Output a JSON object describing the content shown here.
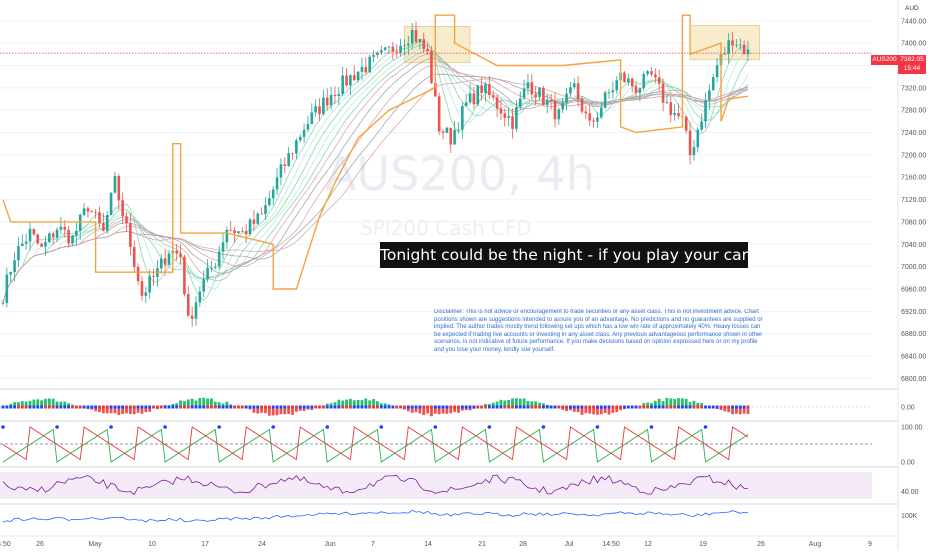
{
  "watermark": {
    "title": "AUS200, 4h",
    "subtitle": "SPI200 Cash CFD"
  },
  "banner_text": "Tonight could be the night - if you play your cards right",
  "disclaimer_text": "Disclaimer: This is not advice or encouragement to trade securities or any asset class. This is not investment advice. Chart positions shown are suggestions intended to assure you of an advantage. No predictions and no guarantees are supplied or implied. The author trades mostly trend following set ups which has a low win rate of approximately 40%. Heavy losses can be expected if trading live accounts or investing in any asset class. Any previous advantageous performance shown in other scenarios, is not indicative of future performance.  If you make decisions based on opinion expressed here or on my profile and you lose your money, kindly sue yourself.",
  "currency_label": "AUD",
  "price_badge": {
    "symbol": "AUS200",
    "price": "7382.05",
    "countdown": "15:44"
  },
  "colors": {
    "up": "#26a69a",
    "down": "#ef5350",
    "stop": "#f5a340",
    "highlight": "#f3e3b0",
    "rsi": "#7b1fa2",
    "volume_line": "#2962ff"
  },
  "chart_data": {
    "type": "candlestick",
    "symbol": "AUS200",
    "timeframe": "4h",
    "ylim": [
      6790,
      7470
    ],
    "y_ticks": [
      6800,
      6840,
      6880,
      6920,
      6960,
      7000,
      7040,
      7080,
      7120,
      7160,
      7200,
      7240,
      7280,
      7320,
      7360,
      7400,
      7440
    ],
    "x_ticks": [
      "14:50",
      "26",
      "May",
      "10",
      "17",
      "24",
      "Jun",
      "7",
      "14",
      "21",
      "28",
      "Jul",
      "14:50",
      "12",
      "19",
      "26",
      "Aug",
      "9"
    ],
    "last_price": 7382.05,
    "close_path": [
      {
        "i": 0,
        "v": 6950
      },
      {
        "i": 3,
        "v": 7020
      },
      {
        "i": 7,
        "v": 7060
      },
      {
        "i": 10,
        "v": 7030
      },
      {
        "i": 14,
        "v": 7070
      },
      {
        "i": 18,
        "v": 7050
      },
      {
        "i": 22,
        "v": 7110
      },
      {
        "i": 26,
        "v": 7060
      },
      {
        "i": 29,
        "v": 7150
      },
      {
        "i": 33,
        "v": 7040
      },
      {
        "i": 36,
        "v": 6950
      },
      {
        "i": 40,
        "v": 6990
      },
      {
        "i": 43,
        "v": 7030
      },
      {
        "i": 46,
        "v": 7020
      },
      {
        "i": 48,
        "v": 6900
      },
      {
        "i": 51,
        "v": 6960
      },
      {
        "i": 55,
        "v": 7010
      },
      {
        "i": 58,
        "v": 7070
      },
      {
        "i": 62,
        "v": 7060
      },
      {
        "i": 67,
        "v": 7090
      },
      {
        "i": 72,
        "v": 7170
      },
      {
        "i": 78,
        "v": 7250
      },
      {
        "i": 85,
        "v": 7310
      },
      {
        "i": 92,
        "v": 7350
      },
      {
        "i": 99,
        "v": 7380
      },
      {
        "i": 106,
        "v": 7420
      },
      {
        "i": 110,
        "v": 7380
      },
      {
        "i": 113,
        "v": 7250
      },
      {
        "i": 116,
        "v": 7230
      },
      {
        "i": 120,
        "v": 7290
      },
      {
        "i": 124,
        "v": 7320
      },
      {
        "i": 128,
        "v": 7290
      },
      {
        "i": 132,
        "v": 7260
      },
      {
        "i": 136,
        "v": 7330
      },
      {
        "i": 140,
        "v": 7300
      },
      {
        "i": 144,
        "v": 7270
      },
      {
        "i": 148,
        "v": 7320
      },
      {
        "i": 152,
        "v": 7250
      },
      {
        "i": 156,
        "v": 7300
      },
      {
        "i": 160,
        "v": 7340
      },
      {
        "i": 164,
        "v": 7320
      },
      {
        "i": 168,
        "v": 7340
      },
      {
        "i": 172,
        "v": 7290
      },
      {
        "i": 176,
        "v": 7260
      },
      {
        "i": 178,
        "v": 7200
      },
      {
        "i": 181,
        "v": 7270
      },
      {
        "i": 185,
        "v": 7360
      },
      {
        "i": 189,
        "v": 7410
      },
      {
        "i": 193,
        "v": 7382
      }
    ],
    "stop_line": [
      {
        "i": 0,
        "v": 7120
      },
      {
        "i": 2,
        "v": 7080
      },
      {
        "i": 24,
        "v": 7080
      },
      {
        "i": 24,
        "v": 6990
      },
      {
        "i": 44,
        "v": 6990
      },
      {
        "i": 44,
        "v": 7220
      },
      {
        "i": 46,
        "v": 7220
      },
      {
        "i": 46,
        "v": 7060
      },
      {
        "i": 58,
        "v": 7060
      },
      {
        "i": 70,
        "v": 7040
      },
      {
        "i": 70,
        "v": 6960
      },
      {
        "i": 76,
        "v": 6960
      },
      {
        "i": 82,
        "v": 7090
      },
      {
        "i": 86,
        "v": 7150
      },
      {
        "i": 92,
        "v": 7230
      },
      {
        "i": 100,
        "v": 7280
      },
      {
        "i": 106,
        "v": 7300
      },
      {
        "i": 112,
        "v": 7320
      },
      {
        "i": 112,
        "v": 7450
      },
      {
        "i": 117,
        "v": 7450
      },
      {
        "i": 117,
        "v": 7400
      },
      {
        "i": 128,
        "v": 7360
      },
      {
        "i": 145,
        "v": 7360
      },
      {
        "i": 160,
        "v": 7370
      },
      {
        "i": 160,
        "v": 7250
      },
      {
        "i": 164,
        "v": 7240
      },
      {
        "i": 176,
        "v": 7250
      },
      {
        "i": 176,
        "v": 7450
      },
      {
        "i": 178,
        "v": 7450
      },
      {
        "i": 178,
        "v": 7380
      },
      {
        "i": 186,
        "v": 7400
      },
      {
        "i": 186,
        "v": 7260
      },
      {
        "i": 188,
        "v": 7300
      },
      {
        "i": 193,
        "v": 7305
      }
    ],
    "highlight_zones": [
      {
        "i0": 104,
        "i1": 121,
        "v0": 7365,
        "v1": 7430
      },
      {
        "i0": 178,
        "i1": 196,
        "v0": 7370,
        "v1": 7432
      }
    ],
    "panels": [
      {
        "name": "histogram",
        "y_ticks": [
          "0.00"
        ]
      },
      {
        "name": "oscillator",
        "y_ticks": [
          "100.00",
          "0.00"
        ]
      },
      {
        "name": "rsi",
        "y_ticks": [
          "40.00"
        ]
      },
      {
        "name": "volume",
        "y_ticks": [
          "100K"
        ]
      }
    ]
  }
}
